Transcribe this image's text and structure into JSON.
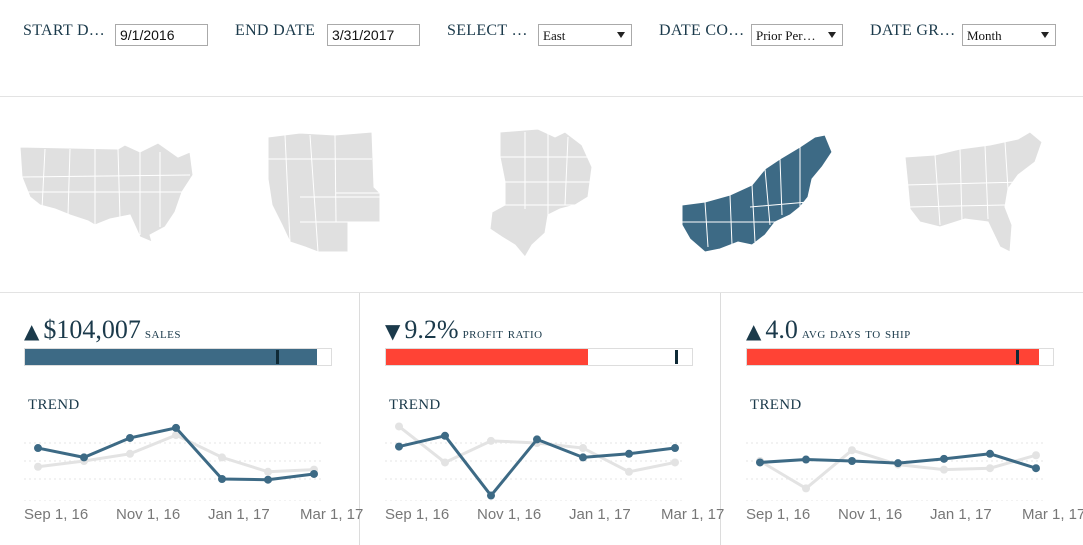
{
  "filters": {
    "start_date": {
      "label": "START D…",
      "value": "9/1/2016"
    },
    "end_date": {
      "label": "END DATE",
      "value": "3/31/2017"
    },
    "select_region": {
      "label": "SELECT …",
      "value": "East"
    },
    "date_comparison": {
      "label": "DATE CO…",
      "value": "Prior Per…"
    },
    "date_granularity": {
      "label": "DATE GR…",
      "value": "Month"
    }
  },
  "maps": {
    "regions": [
      "all",
      "west",
      "central",
      "east",
      "south"
    ],
    "selected": "east",
    "colors": {
      "selected": "#3d6a85",
      "unselected": "#e0e0e0",
      "border": "#ffffff"
    }
  },
  "kpis": [
    {
      "arrow": "▲",
      "value": "$104,007",
      "name": "SALES",
      "trend_label": "TREND",
      "bar": {
        "fill_fraction": 0.955,
        "reference_fraction": 0.82,
        "color": "#3d6a85"
      },
      "chart_data": {
        "type": "line",
        "x": [
          "Sep 1, 16",
          "Oct 1, 16",
          "Nov 1, 16",
          "Dec 1, 16",
          "Jan 1, 17",
          "Feb 1, 17",
          "Mar 1, 17"
        ],
        "series": [
          {
            "values": [
              0.68,
              0.55,
              0.82,
              0.96,
              0.25,
              0.24,
              0.32
            ],
            "color": "#3d6a85"
          },
          {
            "values": [
              0.42,
              0.5,
              0.6,
              0.86,
              0.55,
              0.35,
              0.38
            ],
            "color": "#e3e3e3"
          }
        ],
        "tick_labels": [
          "Sep 1, 16",
          "Nov 1, 16",
          "Jan 1, 17",
          "Mar 1, 17"
        ]
      }
    },
    {
      "arrow": "▼",
      "value": "9.2%",
      "name": "PROFIT RATIO",
      "trend_label": "TREND",
      "bar": {
        "fill_fraction": 0.66,
        "reference_fraction": 0.945,
        "color": "#ff4335"
      },
      "chart_data": {
        "type": "line",
        "x": [
          "Sep 1, 16",
          "Oct 1, 16",
          "Nov 1, 16",
          "Dec 1, 16",
          "Jan 1, 17",
          "Feb 1, 17",
          "Mar 1, 17"
        ],
        "series": [
          {
            "values": [
              0.7,
              0.85,
              0.02,
              0.8,
              0.55,
              0.6,
              0.68
            ],
            "color": "#3d6a85"
          },
          {
            "values": [
              0.98,
              0.48,
              0.78,
              0.75,
              0.68,
              0.35,
              0.48
            ],
            "color": "#e3e3e3"
          }
        ],
        "tick_labels": [
          "Sep 1, 16",
          "Nov 1, 16",
          "Jan 1, 17",
          "Mar 1, 17"
        ]
      }
    },
    {
      "arrow": "▲",
      "value": "4.0",
      "name": "AVG DAYS TO SHIP",
      "trend_label": "TREND",
      "bar": {
        "fill_fraction": 0.955,
        "reference_fraction": 0.88,
        "color": "#ff4335"
      },
      "chart_data": {
        "type": "line",
        "x": [
          "Sep 1, 16",
          "Oct 1, 16",
          "Nov 1, 16",
          "Dec 1, 16",
          "Jan 1, 17",
          "Feb 1, 17",
          "Mar 1, 17"
        ],
        "series": [
          {
            "values": [
              0.48,
              0.52,
              0.5,
              0.47,
              0.53,
              0.6,
              0.4
            ],
            "color": "#3d6a85"
          },
          {
            "values": [
              0.5,
              0.12,
              0.65,
              0.45,
              0.38,
              0.4,
              0.58
            ],
            "color": "#e3e3e3"
          }
        ],
        "tick_labels": [
          "Sep 1, 16",
          "Nov 1, 16",
          "Jan 1, 17",
          "Mar 1, 17"
        ]
      }
    }
  ]
}
